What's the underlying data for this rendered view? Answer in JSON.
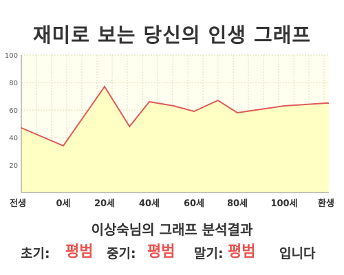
{
  "colors": {
    "line": "#e05a5a",
    "fill": "#ffffc4",
    "plot_bg": "#fffff0",
    "grid": "#dcdcb4",
    "emphasis": "#e8524f",
    "text": "#333333"
  },
  "chart_data": {
    "type": "area",
    "title": "재미로 보는 당신의 인생 그래프",
    "xlabel": "",
    "ylabel": "",
    "x_tick_labels": [
      "전생",
      "0세",
      "20세",
      "40세",
      "60세",
      "80세",
      "100세",
      "환생"
    ],
    "y_ticks": [
      20,
      40,
      60,
      80,
      100
    ],
    "ylim": [
      0,
      100
    ],
    "grid": true,
    "legend": "none",
    "series": [
      {
        "points": [
          {
            "x": "전생",
            "y": 47
          },
          {
            "x": "0세",
            "y": 34
          },
          {
            "x": "20세",
            "y": 77
          },
          {
            "x": "30세",
            "y": 48
          },
          {
            "x": "40세",
            "y": 66
          },
          {
            "x": "50세",
            "y": 63
          },
          {
            "x": "60세",
            "y": 59
          },
          {
            "x": "70세",
            "y": 67
          },
          {
            "x": "80세",
            "y": 58
          },
          {
            "x": "100세",
            "y": 63
          },
          {
            "x": "환생",
            "y": 65
          }
        ]
      }
    ]
  },
  "result": {
    "heading": "이상숙님의 그래프 분석결과",
    "early_label": "초기:",
    "early_value": "평범",
    "middle_label": "중기:",
    "middle_value": "평범",
    "late_label": "말기:",
    "late_value": "평범",
    "ending": "입니다"
  }
}
